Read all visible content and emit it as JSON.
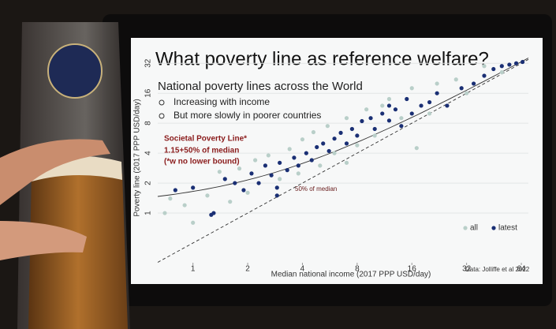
{
  "chart_data": {
    "type": "scatter",
    "title": "What poverty line as reference welfare?",
    "subtitle": "National poverty lines across the World",
    "bullets": [
      "Increasing with income",
      "But more slowly in poorer countries"
    ],
    "annotations": [
      "Societal Poverty Line*",
      "1.15+50% of median",
      "(*w no lower bound)",
      "50% of median"
    ],
    "source": "Data: Jolliffe et al 2022",
    "xlabel": "Median national income (2017 PPP USD/day)",
    "ylabel": "Poverty line (2017 PPP USD/day)",
    "xscale": "log",
    "yscale": "log",
    "xlim": [
      0.64,
      70
    ],
    "ylim": [
      0.3,
      40
    ],
    "xticks": [
      1,
      2,
      4,
      8,
      16,
      32,
      64
    ],
    "yticks": [
      1,
      2,
      4,
      8,
      16,
      32
    ],
    "legend": "bottom-right",
    "reference_lines": [
      {
        "intercept": 1.15,
        "slope": 0.5,
        "style": "solid"
      },
      {
        "intercept": 0,
        "slope": 0.5,
        "style": "dashed"
      }
    ],
    "series": [
      {
        "name": "all",
        "color": "#b9cfc9",
        "x": [
          0.7,
          0.9,
          1.2,
          1.4,
          1.6,
          1.8,
          2,
          2.2,
          2.6,
          3,
          3.4,
          3.8,
          4,
          4.6,
          5,
          5.5,
          6,
          7,
          8,
          9,
          10,
          11,
          12,
          14,
          16,
          17,
          20,
          22,
          28,
          32,
          40,
          50,
          7,
          1.0,
          0.75
        ],
        "values": [
          1.0,
          1.2,
          1.5,
          2.6,
          1.3,
          2.8,
          1.6,
          3.4,
          3.8,
          2.2,
          4.4,
          2.5,
          5.5,
          6.5,
          3.0,
          7.5,
          4.0,
          9,
          4.8,
          11,
          6,
          12,
          14,
          9,
          18,
          4.5,
          10,
          20,
          22,
          16,
          30,
          26,
          3.2,
          0.8,
          1.4
        ]
      },
      {
        "name": "latest",
        "color": "#1a2f74",
        "x": [
          0.8,
          1.0,
          1.26,
          1.3,
          1.5,
          1.7,
          1.9,
          2.1,
          2.3,
          2.5,
          2.7,
          2.9,
          3.0,
          3.3,
          3.6,
          3.8,
          4.2,
          4.5,
          4.8,
          5.2,
          5.6,
          6,
          6.5,
          7,
          7.5,
          8,
          8.5,
          9.5,
          10,
          11,
          12,
          13,
          14,
          16,
          18,
          20,
          22,
          25,
          30,
          35,
          40,
          45,
          50,
          55,
          60,
          65,
          15,
          12,
          2.9
        ],
        "values": [
          1.7,
          1.8,
          0.96,
          1.0,
          2.2,
          2.0,
          1.7,
          2.5,
          2.0,
          3.0,
          2.4,
          1.8,
          3.2,
          2.7,
          3.6,
          3.0,
          4.0,
          3.4,
          4.6,
          5.0,
          4.2,
          5.6,
          6.4,
          5.0,
          7.0,
          6.0,
          8.4,
          9,
          7,
          10,
          8.5,
          11,
          7.5,
          10,
          12,
          13,
          16,
          12,
          18,
          20,
          24,
          28,
          30,
          31,
          32,
          33,
          14,
          12,
          1.5
        ]
      }
    ]
  }
}
